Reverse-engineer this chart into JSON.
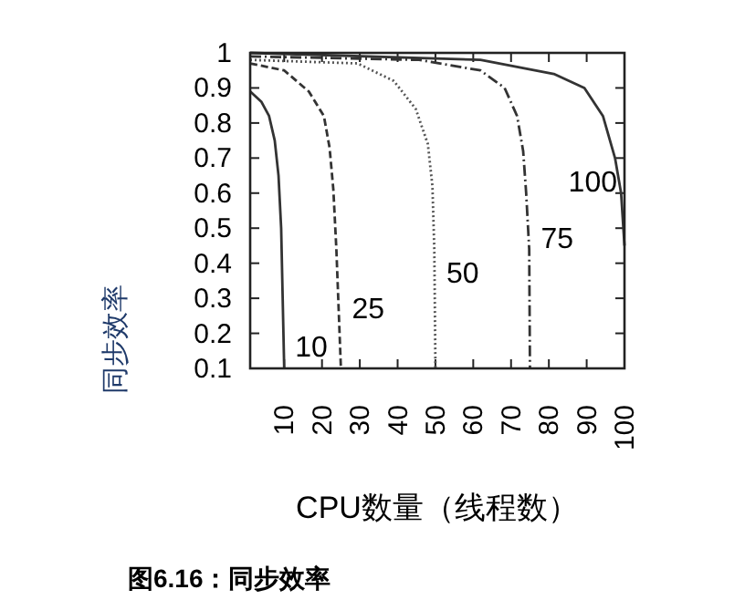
{
  "chart_data": {
    "type": "line",
    "title": "图6.16：同步效率",
    "xlabel": "CPU数量（线程数）",
    "ylabel": "同步效率",
    "xlim": [
      1,
      100
    ],
    "ylim": [
      0.1,
      1
    ],
    "xticks": [
      10,
      20,
      30,
      40,
      50,
      60,
      70,
      80,
      90,
      100
    ],
    "yticks": [
      0.1,
      0.2,
      0.3,
      0.4,
      0.5,
      0.6,
      0.7,
      0.8,
      0.9,
      1
    ],
    "grid": false,
    "marker": "none",
    "series": [
      {
        "name": "10",
        "color": "#333333",
        "line_style": "solid",
        "x": [
          1,
          4,
          6,
          7.5,
          8.5,
          9.2,
          9.6,
          10
        ],
        "values": [
          0.89,
          0.86,
          0.82,
          0.75,
          0.65,
          0.5,
          0.3,
          0.1
        ]
      },
      {
        "name": "25",
        "color": "#333333",
        "line_style": "dashed",
        "x": [
          1,
          10,
          16.5,
          20.5,
          22,
          23,
          23.8,
          25
        ],
        "values": [
          0.97,
          0.95,
          0.89,
          0.82,
          0.73,
          0.61,
          0.44,
          0.1
        ]
      },
      {
        "name": "50",
        "color": "#555555",
        "line_style": "dotted",
        "x": [
          1,
          29.4,
          39,
          44.8,
          48,
          49.2,
          49.7,
          50
        ],
        "values": [
          0.98,
          0.97,
          0.92,
          0.84,
          0.74,
          0.62,
          0.44,
          0.1
        ]
      },
      {
        "name": "75",
        "color": "#333333",
        "line_style": "dashdot",
        "x": [
          1,
          45.7,
          61.9,
          68.3,
          71.6,
          73.2,
          74,
          74.8,
          75
        ],
        "values": [
          0.99,
          0.98,
          0.95,
          0.9,
          0.82,
          0.72,
          0.6,
          0.44,
          0.1
        ]
      },
      {
        "name": "100",
        "color": "#333333",
        "line_style": "solid",
        "x": [
          1,
          61.9,
          81.3,
          89.4,
          94.3,
          97.5,
          99.1,
          100
        ],
        "values": [
          1,
          0.98,
          0.94,
          0.9,
          0.82,
          0.7,
          0.6,
          0.45
        ]
      }
    ]
  }
}
